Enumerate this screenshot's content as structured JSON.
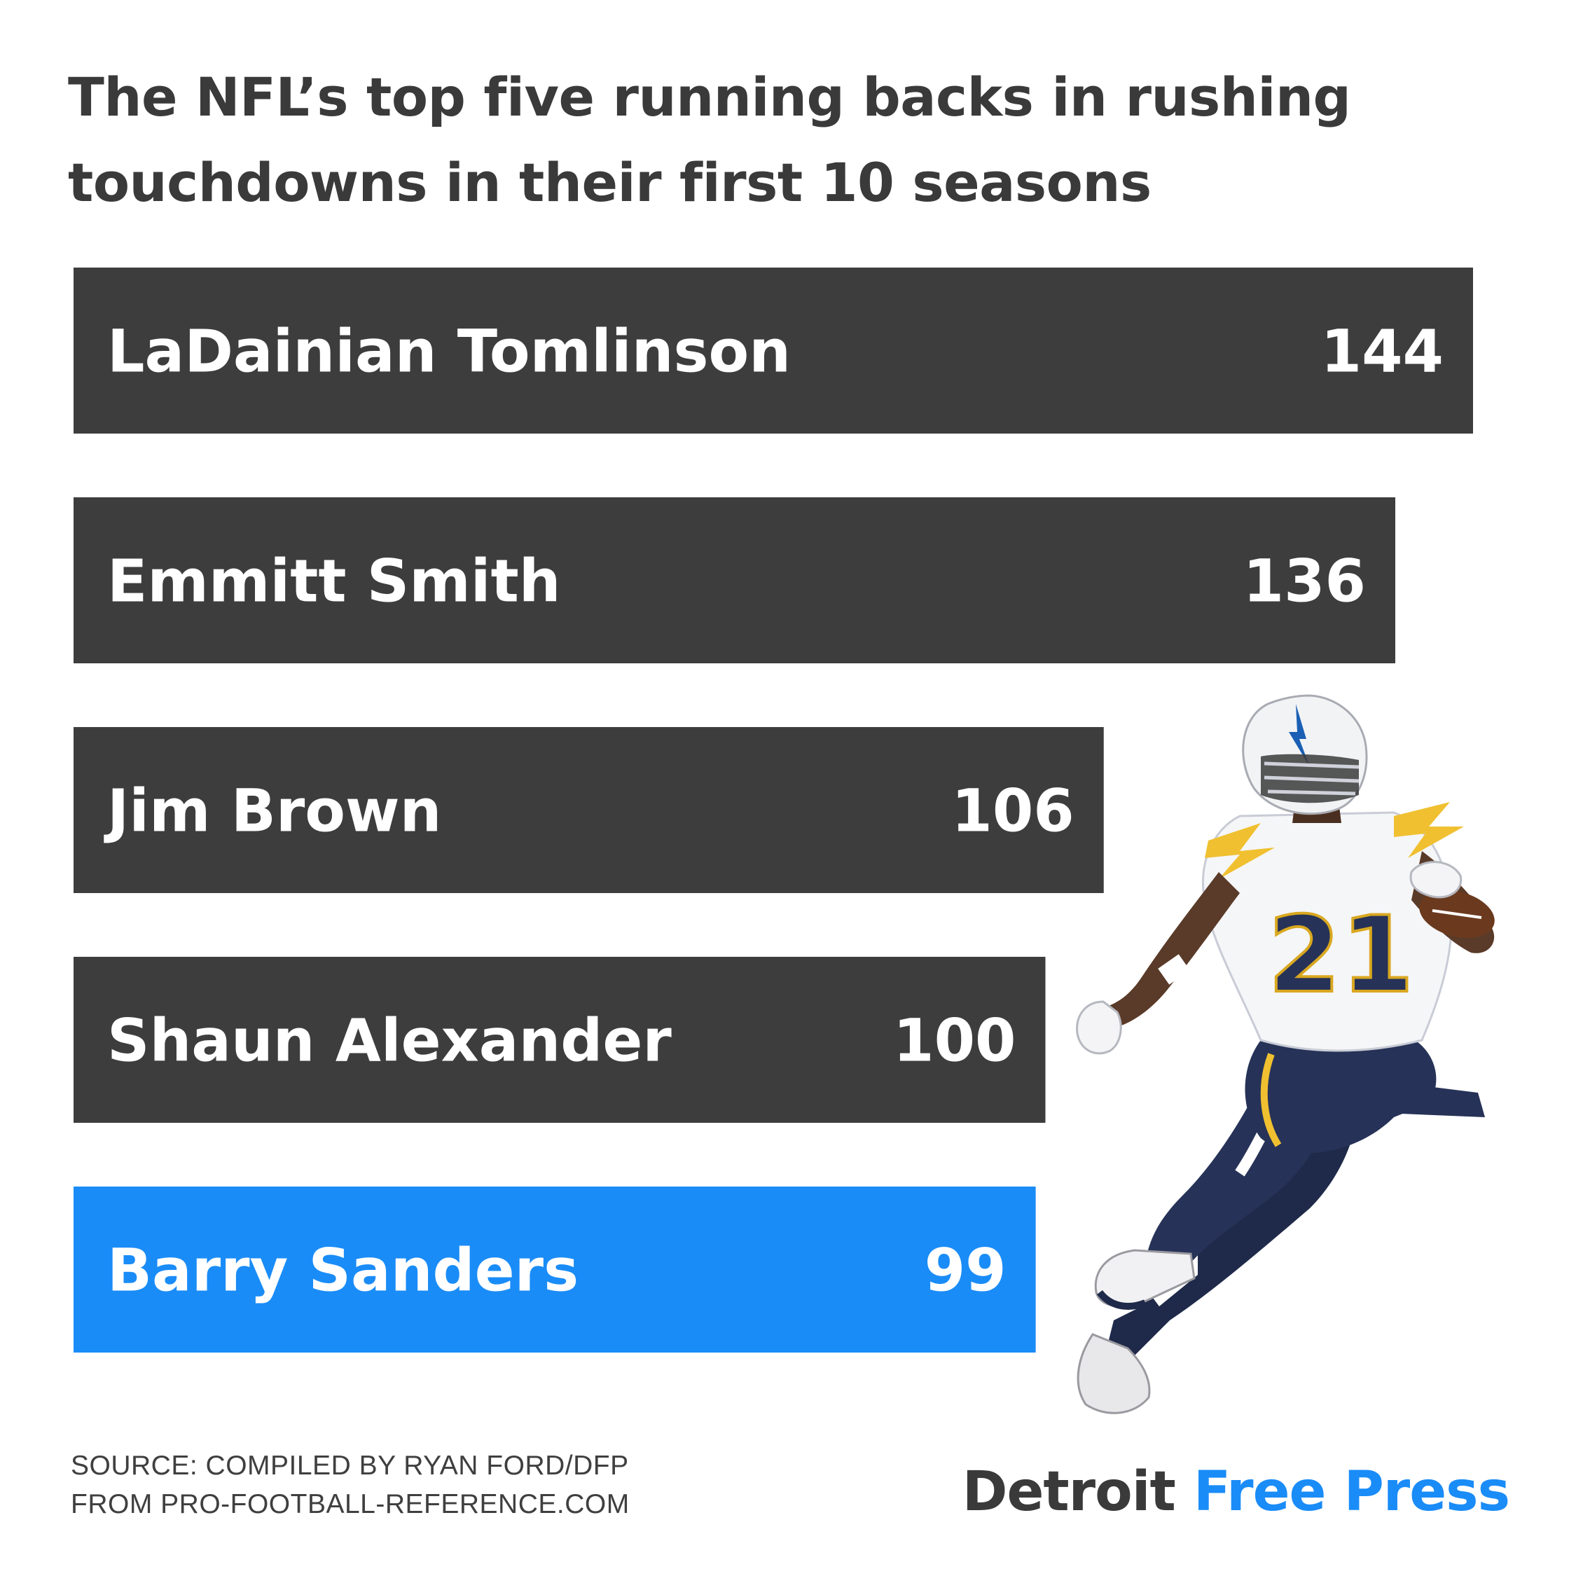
{
  "title": "The NFL’s top five running backs in rushing touchdowns in their first 10 seasons",
  "chart_data": {
    "type": "bar",
    "orientation": "horizontal",
    "title": "The NFL’s top five running backs in rushing touchdowns in their first 10 seasons",
    "categories": [
      "LaDainian Tomlinson",
      "Emmitt Smith",
      "Jim Brown",
      "Shaun Alexander",
      "Barry Sanders"
    ],
    "values": [
      144,
      136,
      106,
      100,
      99
    ],
    "highlight": "Barry Sanders",
    "xlabel": "",
    "ylabel": "",
    "grid": false,
    "legend": "none",
    "colors": {
      "bar": "#3d3d3d",
      "highlight": "#1a8cf7",
      "label": "#ffffff"
    }
  },
  "source": {
    "line1": "SOURCE: COMPILED BY RYAN FORD/DFP",
    "line2": "FROM PRO-FOOTBALL-REFERENCE.COM"
  },
  "logo": {
    "word1": "Detroit",
    "word2": "Free Press"
  },
  "colors": {
    "title_text": "#3a3a3a",
    "brand_blue": "#1a8cf7",
    "bar_dark": "#3d3d3d"
  }
}
